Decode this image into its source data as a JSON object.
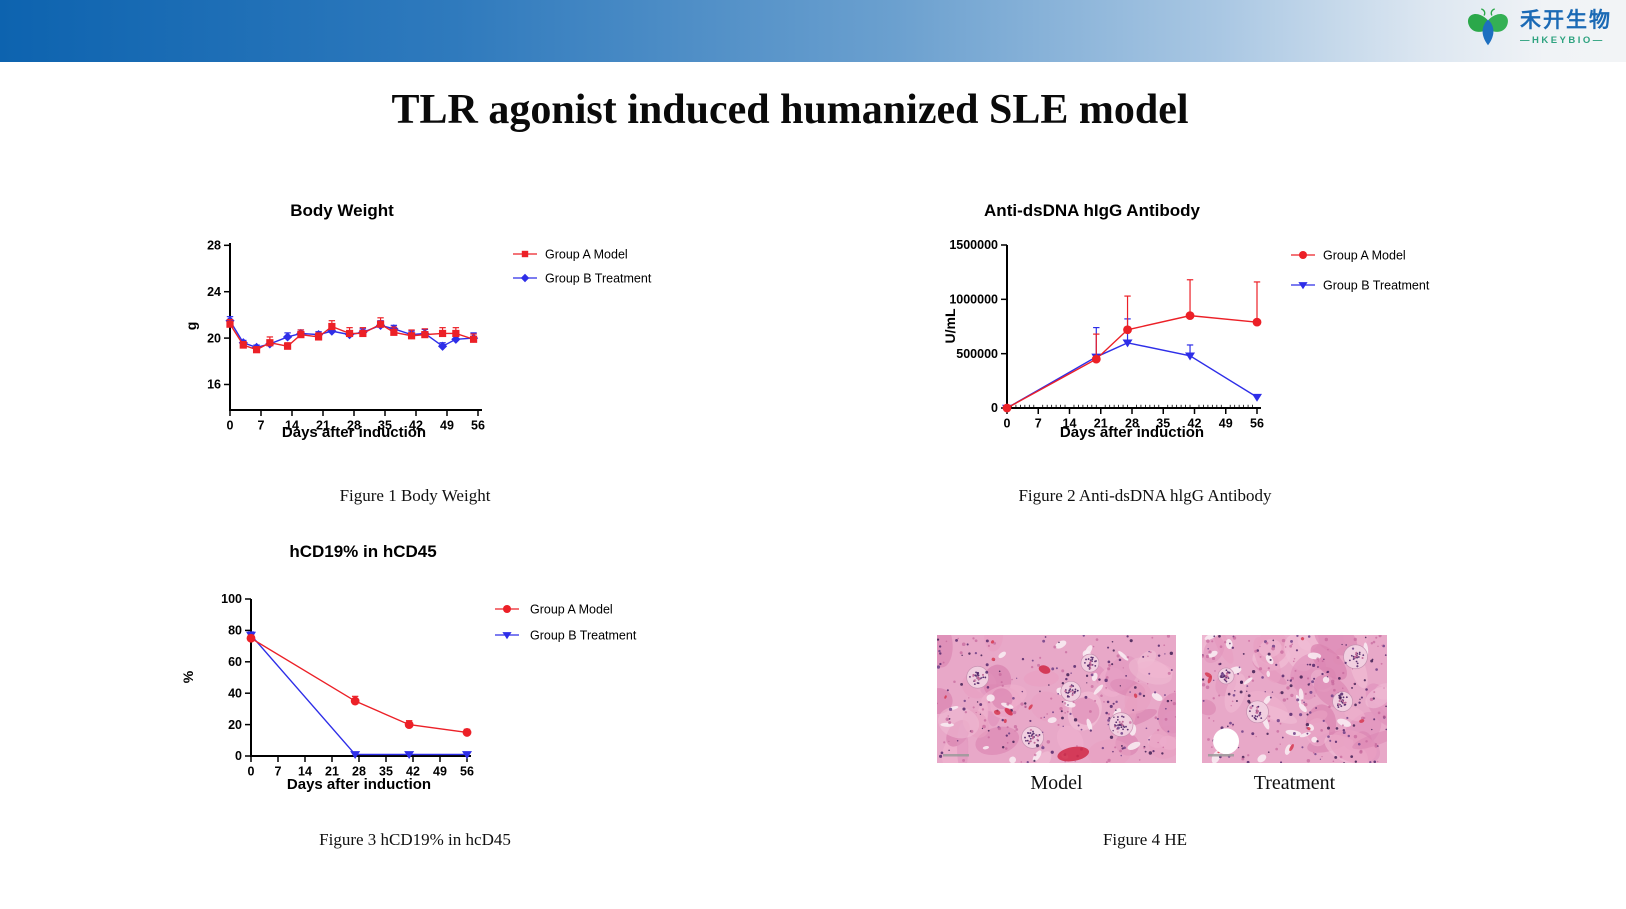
{
  "header": {
    "logo_cn": "禾开生物",
    "logo_en": "—HKEYBIO—"
  },
  "title": "TLR agonist induced humanized SLE model",
  "captions": {
    "fig1": "Figure 1 Body Weight",
    "fig2": "Figure 2 Anti-dsDNA hlgG Antibody",
    "fig3": "Figure 3 hCD19% in hcD45",
    "fig4": "Figure 4 HE"
  },
  "he_panel": {
    "model_label": "Model",
    "treatment_label": "Treatment"
  },
  "colors": {
    "group_a_red": "#ec2027",
    "group_b_blue": "#2e2ee8"
  },
  "chart_data": [
    {
      "type": "line",
      "title": "Body  Weight",
      "xlabel": "Days after induction",
      "ylabel": "g",
      "xlim": [
        0,
        56
      ],
      "ylim": [
        13.8,
        28.2
      ],
      "xticks": [
        0,
        7,
        14,
        21,
        28,
        35,
        42,
        49,
        56
      ],
      "yticks": [
        16,
        20,
        24,
        28
      ],
      "legend_position": "right",
      "grid": false,
      "series": [
        {
          "name": "Group A Model",
          "color": "#ec2027",
          "marker": "square",
          "x": [
            0,
            3,
            6,
            9,
            13,
            16,
            20,
            23,
            27,
            30,
            34,
            37,
            41,
            44,
            48,
            51,
            55
          ],
          "y": [
            21.2,
            19.4,
            19.0,
            19.6,
            19.3,
            20.3,
            20.1,
            21.0,
            20.4,
            20.4,
            21.2,
            20.5,
            20.2,
            20.3,
            20.4,
            20.4,
            19.9
          ],
          "err_up": [
            0.4,
            0.3,
            0.25,
            0.5,
            0.3,
            0.4,
            0.35,
            0.5,
            0.5,
            0.5,
            0.55,
            0.45,
            0.5,
            0.5,
            0.5,
            0.5,
            0.45
          ]
        },
        {
          "name": "Group B Treatment",
          "color": "#2e2ee8",
          "marker": "diamond",
          "x": [
            0,
            3,
            6,
            9,
            13,
            16,
            20,
            23,
            27,
            30,
            34,
            37,
            41,
            44,
            48,
            51,
            55
          ],
          "y": [
            21.5,
            19.6,
            19.2,
            19.5,
            20.1,
            20.4,
            20.3,
            20.6,
            20.3,
            20.5,
            21.1,
            20.8,
            20.3,
            20.4,
            19.3,
            19.9,
            20.0
          ],
          "err_up": [
            0.35,
            0.2,
            0.2,
            0.3,
            0.35,
            0.3,
            0.25,
            0.3,
            0.25,
            0.3,
            0.4,
            0.3,
            0.3,
            0.35,
            0.3,
            0.25,
            0.45
          ]
        }
      ]
    },
    {
      "type": "line",
      "title": "Anti-dsDNA hIgG Antibody",
      "xlabel": "Days after induction",
      "ylabel": "U/mL",
      "xlim": [
        0,
        56
      ],
      "ylim": [
        0,
        1500000
      ],
      "xticks": [
        0,
        7,
        14,
        21,
        28,
        35,
        42,
        49,
        56
      ],
      "yticks": [
        0,
        500000,
        1000000,
        1500000
      ],
      "legend_position": "right",
      "grid": false,
      "series": [
        {
          "name": "Group A Model",
          "color": "#ec2027",
          "marker": "circle",
          "x": [
            0,
            20,
            27,
            41,
            56
          ],
          "y": [
            0,
            450000,
            720000,
            850000,
            790000
          ],
          "err_up": [
            0,
            230000,
            310000,
            330000,
            370000
          ]
        },
        {
          "name": "Group B Treatment",
          "color": "#2e2ee8",
          "marker": "triangle-down",
          "x": [
            0,
            20,
            27,
            41,
            56
          ],
          "y": [
            0,
            470000,
            600000,
            480000,
            100000
          ],
          "err_up": [
            0,
            270000,
            220000,
            100000,
            0
          ]
        }
      ]
    },
    {
      "type": "line",
      "title": "hCD19% in hCD45",
      "xlabel": "Days after induction",
      "ylabel": "%",
      "xlim": [
        0,
        56
      ],
      "ylim": [
        0,
        100
      ],
      "xticks": [
        0,
        7,
        14,
        21,
        28,
        35,
        42,
        49,
        56
      ],
      "yticks": [
        0,
        20,
        40,
        60,
        80,
        100
      ],
      "legend_position": "right",
      "grid": false,
      "series": [
        {
          "name": "Group A Model",
          "color": "#ec2027",
          "marker": "circle",
          "x": [
            0,
            27,
            41,
            56
          ],
          "y": [
            75,
            35,
            20,
            15
          ],
          "err_up": [
            2,
            3,
            2.5,
            2
          ]
        },
        {
          "name": "Group B Treatment",
          "color": "#2e2ee8",
          "marker": "triangle-down",
          "x": [
            0,
            27,
            41,
            56
          ],
          "y": [
            77,
            1,
            1,
            1
          ],
          "err_up": [
            2,
            0,
            0,
            0
          ]
        }
      ]
    }
  ]
}
